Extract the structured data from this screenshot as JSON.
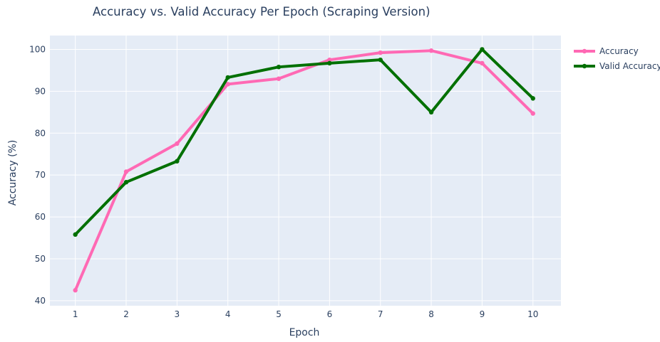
{
  "chart_data": {
    "type": "line",
    "title": "Accuracy vs. Valid Accuracy Per Epoch (Scraping Version)",
    "xlabel": "Epoch",
    "ylabel": "Accuracy (%)",
    "x": [
      1,
      2,
      3,
      4,
      5,
      6,
      7,
      8,
      9,
      10
    ],
    "xlim": [
      0.5,
      10.55
    ],
    "ylim": [
      38.8,
      103.3
    ],
    "yticks": [
      40,
      50,
      60,
      70,
      80,
      90,
      100
    ],
    "xticks": [
      1,
      2,
      3,
      4,
      5,
      6,
      7,
      8,
      9,
      10
    ],
    "grid": true,
    "legend": "top-right",
    "plot_bg": "#e5ecf6",
    "series": [
      {
        "name": "Accuracy",
        "color": "#ff69b4",
        "values": [
          42.5,
          70.8,
          77.5,
          91.7,
          93.0,
          97.5,
          99.2,
          99.7,
          96.7,
          84.7
        ]
      },
      {
        "name": "Valid Accuracy",
        "color": "#007000",
        "values": [
          55.8,
          68.3,
          73.3,
          93.3,
          95.8,
          96.7,
          97.5,
          85.0,
          100.0,
          88.3
        ]
      }
    ]
  }
}
